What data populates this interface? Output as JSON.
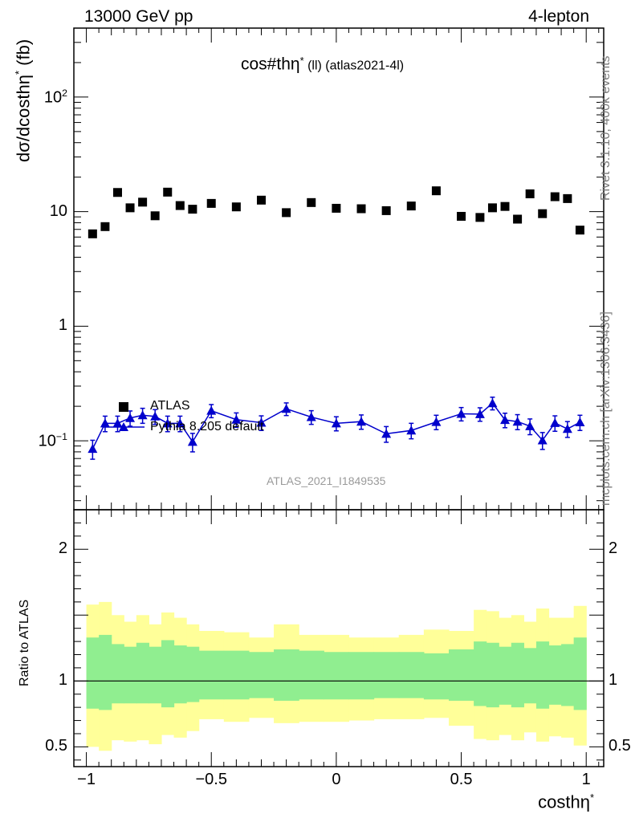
{
  "header": {
    "left": "13000 GeV pp",
    "right": "4-lepton"
  },
  "side_labels": {
    "rivet": "Rivet 3.1.10,  400k events",
    "mcplots": "mcplots.cern.ch [arXiv:1306.3436]"
  },
  "analysis_id": "ATLAS_2021_I1849535",
  "chart_data": [
    {
      "type": "scatter",
      "title": "cos#thη* (ll) (atlas2021-4l)",
      "title_main": "cos#thη",
      "title_sup": "*",
      "title_rest": " (ll) (atlas2021-4l)",
      "ylabel": "dσ/dcosthη* (fb)",
      "ylabel_main": "dσ/dcosthη",
      "ylabel_sup": "*",
      "ylabel_rest": " (fb)",
      "yscale": "log",
      "ylim": [
        0.025,
        400
      ],
      "xlim": [
        -1.05,
        1.07
      ],
      "yticks": [
        {
          "value": 0.1,
          "base": "10",
          "exp": "−1"
        },
        {
          "value": 1,
          "label": "1"
        },
        {
          "value": 10,
          "label": "10"
        },
        {
          "value": 100,
          "base": "10",
          "exp": "2"
        }
      ],
      "legend_position": "lower-left",
      "series": [
        {
          "name": "ATLAS",
          "color": "#000000",
          "marker": "square",
          "x": [
            -0.975,
            -0.925,
            -0.875,
            -0.825,
            -0.775,
            -0.725,
            -0.675,
            -0.625,
            -0.575,
            -0.5,
            -0.4,
            -0.3,
            -0.2,
            -0.1,
            0.0,
            0.1,
            0.2,
            0.3,
            0.4,
            0.5,
            0.575,
            0.625,
            0.675,
            0.725,
            0.775,
            0.825,
            0.875,
            0.925,
            0.975
          ],
          "y": [
            6.4,
            7.4,
            14.7,
            10.8,
            12.1,
            9.2,
            14.8,
            11.3,
            10.5,
            11.8,
            11.0,
            12.6,
            9.8,
            12.0,
            10.7,
            10.6,
            10.2,
            11.2,
            15.2,
            9.1,
            8.9,
            10.8,
            11.1,
            8.6,
            14.3,
            9.6,
            13.5,
            13.0,
            6.9
          ]
        },
        {
          "name": "Pythia 8.205 default",
          "color": "#0000cc",
          "marker": "triangle",
          "x": [
            -0.975,
            -0.925,
            -0.875,
            -0.825,
            -0.775,
            -0.725,
            -0.675,
            -0.625,
            -0.575,
            -0.5,
            -0.4,
            -0.3,
            -0.2,
            -0.1,
            0.0,
            0.1,
            0.2,
            0.3,
            0.4,
            0.5,
            0.575,
            0.625,
            0.675,
            0.725,
            0.775,
            0.825,
            0.875,
            0.925,
            0.975
          ],
          "y": [
            0.085,
            0.142,
            0.142,
            0.158,
            0.167,
            0.163,
            0.142,
            0.142,
            0.098,
            0.183,
            0.153,
            0.144,
            0.19,
            0.161,
            0.142,
            0.147,
            0.115,
            0.123,
            0.146,
            0.172,
            0.171,
            0.213,
            0.152,
            0.147,
            0.134,
            0.101,
            0.143,
            0.127,
            0.145
          ],
          "err": [
            0.016,
            0.022,
            0.022,
            0.024,
            0.025,
            0.024,
            0.022,
            0.022,
            0.018,
            0.024,
            0.022,
            0.021,
            0.024,
            0.022,
            0.02,
            0.021,
            0.018,
            0.019,
            0.021,
            0.023,
            0.023,
            0.027,
            0.022,
            0.022,
            0.021,
            0.017,
            0.022,
            0.02,
            0.022
          ]
        }
      ]
    },
    {
      "type": "area",
      "ylabel": "Ratio to ATLAS",
      "xlabel": "costhη*",
      "xlabel_main": "costhη",
      "xlabel_sup": "*",
      "ylim": [
        0.35,
        2.3
      ],
      "xlim": [
        -1.05,
        1.07
      ],
      "xticks": [
        {
          "value": -1,
          "label": "−1"
        },
        {
          "value": -0.5,
          "label": "−0.5"
        },
        {
          "value": 0,
          "label": "0"
        },
        {
          "value": 0.5,
          "label": "0.5"
        },
        {
          "value": 1,
          "label": "1"
        }
      ],
      "yticks": [
        {
          "value": 0.5,
          "label": "0.5"
        },
        {
          "value": 1,
          "label": "1"
        },
        {
          "value": 2,
          "label": "2"
        }
      ],
      "reference_line": 1,
      "bin_edges": [
        -1.0,
        -0.95,
        -0.9,
        -0.85,
        -0.8,
        -0.75,
        -0.7,
        -0.65,
        -0.6,
        -0.55,
        -0.45,
        -0.35,
        -0.25,
        -0.15,
        -0.05,
        0.05,
        0.15,
        0.25,
        0.35,
        0.45,
        0.55,
        0.6,
        0.65,
        0.7,
        0.75,
        0.8,
        0.85,
        0.9,
        0.95,
        1.0
      ],
      "bands": [
        {
          "name": "total uncertainty",
          "color": "#ffff99",
          "upper": [
            1.58,
            1.6,
            1.5,
            1.45,
            1.5,
            1.43,
            1.52,
            1.48,
            1.43,
            1.38,
            1.37,
            1.33,
            1.43,
            1.35,
            1.35,
            1.33,
            1.33,
            1.35,
            1.39,
            1.38,
            1.54,
            1.53,
            1.48,
            1.5,
            1.45,
            1.55,
            1.48,
            1.48,
            1.57
          ],
          "lower": [
            0.5,
            0.47,
            0.55,
            0.54,
            0.55,
            0.52,
            0.59,
            0.57,
            0.62,
            0.71,
            0.69,
            0.72,
            0.68,
            0.69,
            0.69,
            0.7,
            0.71,
            0.71,
            0.72,
            0.66,
            0.56,
            0.55,
            0.59,
            0.55,
            0.61,
            0.54,
            0.58,
            0.57,
            0.51
          ]
        },
        {
          "name": "statistical uncertainty",
          "color": "#90ee90",
          "upper": [
            1.33,
            1.35,
            1.28,
            1.26,
            1.29,
            1.26,
            1.31,
            1.27,
            1.26,
            1.23,
            1.23,
            1.22,
            1.24,
            1.23,
            1.22,
            1.22,
            1.22,
            1.22,
            1.21,
            1.24,
            1.3,
            1.29,
            1.26,
            1.29,
            1.25,
            1.3,
            1.27,
            1.28,
            1.33
          ],
          "lower": [
            0.79,
            0.78,
            0.83,
            0.83,
            0.83,
            0.83,
            0.8,
            0.83,
            0.84,
            0.86,
            0.86,
            0.87,
            0.85,
            0.86,
            0.86,
            0.86,
            0.87,
            0.87,
            0.86,
            0.85,
            0.81,
            0.8,
            0.82,
            0.8,
            0.83,
            0.79,
            0.82,
            0.81,
            0.78
          ]
        }
      ]
    }
  ]
}
